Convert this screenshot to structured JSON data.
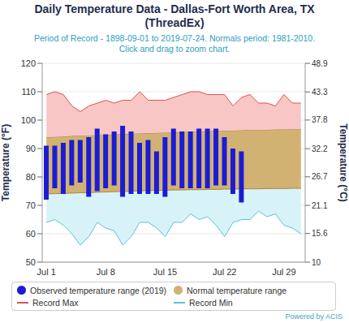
{
  "chart_data": {
    "type": "bar",
    "title": "Daily Temperature Data - Dallas-Fort Worth Area, TX (ThreadEx)",
    "subtitle": "Period of Record - 1898-09-01 to 2019-07-24. Normals period: 1981-2010. Click and drag to zoom chart.",
    "y_label": "Temperature (°F)",
    "y2_label": "Temperature (°C)",
    "credit": "Powered by ACIS",
    "categories": [
      "Jul 1",
      null,
      null,
      null,
      null,
      null,
      null,
      "Jul 8",
      null,
      null,
      null,
      null,
      null,
      null,
      "Jul 15",
      null,
      null,
      null,
      null,
      null,
      null,
      "Jul 22",
      null,
      null,
      null,
      null,
      null,
      null,
      "Jul 29",
      null,
      null
    ],
    "series": [
      {
        "name": "Observed temperature range (2019)",
        "type": "bar",
        "color": "#1c1cd4",
        "values": [
          [
            72,
            91
          ],
          [
            76,
            91
          ],
          [
            74,
            92
          ],
          [
            77,
            93
          ],
          [
            78,
            93
          ],
          [
            73,
            94
          ],
          [
            75,
            97
          ],
          [
            76,
            95
          ],
          [
            77,
            96
          ],
          [
            73,
            98
          ],
          [
            74,
            96
          ],
          [
            74,
            92
          ],
          [
            74,
            93
          ],
          [
            74,
            89
          ],
          [
            73,
            94
          ],
          [
            77,
            97
          ],
          [
            76,
            96
          ],
          [
            76,
            96
          ],
          [
            76,
            97
          ],
          [
            76,
            97
          ],
          [
            77,
            97
          ],
          [
            77,
            94
          ],
          [
            74,
            90
          ],
          [
            71,
            89
          ],
          null,
          null,
          null,
          null,
          null,
          null,
          null
        ]
      },
      {
        "name": "Normal temperature range",
        "type": "area",
        "color": "#d2b273",
        "values": [
          [
            74.0,
            94.0
          ],
          [
            74.1,
            94.1
          ],
          [
            74.2,
            94.2
          ],
          [
            74.3,
            94.4
          ],
          [
            74.4,
            94.5
          ],
          [
            74.5,
            94.6
          ],
          [
            74.6,
            94.7
          ],
          [
            74.7,
            94.8
          ],
          [
            74.8,
            95.0
          ],
          [
            74.9,
            95.1
          ],
          [
            75.0,
            95.2
          ],
          [
            75.1,
            95.3
          ],
          [
            75.2,
            95.4
          ],
          [
            75.2,
            95.5
          ],
          [
            75.3,
            95.6
          ],
          [
            75.4,
            95.7
          ],
          [
            75.4,
            95.8
          ],
          [
            75.5,
            95.9
          ],
          [
            75.5,
            96.0
          ],
          [
            75.6,
            96.1
          ],
          [
            75.6,
            96.2
          ],
          [
            75.7,
            96.2
          ],
          [
            75.7,
            96.3
          ],
          [
            75.8,
            96.4
          ],
          [
            75.8,
            96.5
          ],
          [
            75.8,
            96.5
          ],
          [
            75.9,
            96.6
          ],
          [
            75.9,
            96.7
          ],
          [
            75.9,
            96.7
          ],
          [
            76.0,
            96.8
          ],
          [
            76.0,
            96.8
          ]
        ]
      },
      {
        "name": "Record Max",
        "type": "line",
        "color": "#d9534f",
        "values": [
          109,
          110,
          109,
          105,
          103,
          105,
          106,
          107,
          106,
          107,
          107,
          110,
          107,
          107,
          107,
          108,
          109,
          110,
          110,
          109,
          109,
          109,
          105,
          108,
          109,
          106,
          106,
          105,
          109,
          106,
          106
        ]
      },
      {
        "name": "Record Min",
        "type": "line",
        "color": "#5cc0dd",
        "values": [
          64,
          65,
          63,
          60,
          56,
          59,
          64,
          62,
          61,
          56,
          59,
          64,
          64,
          62,
          59,
          64,
          64,
          67,
          65,
          66,
          63,
          59,
          64,
          65,
          65,
          68,
          66,
          67,
          63,
          62,
          60
        ]
      }
    ],
    "ylim": [
      50,
      120
    ],
    "yticks": [
      50,
      60,
      70,
      80,
      90,
      100,
      110,
      120
    ],
    "y2lim": [
      10,
      48.9
    ],
    "y2ticks": [
      10,
      15.6,
      21.1,
      26.7,
      32.2,
      37.8,
      43.3,
      48.9
    ],
    "grid": true,
    "legend": "bottom"
  }
}
